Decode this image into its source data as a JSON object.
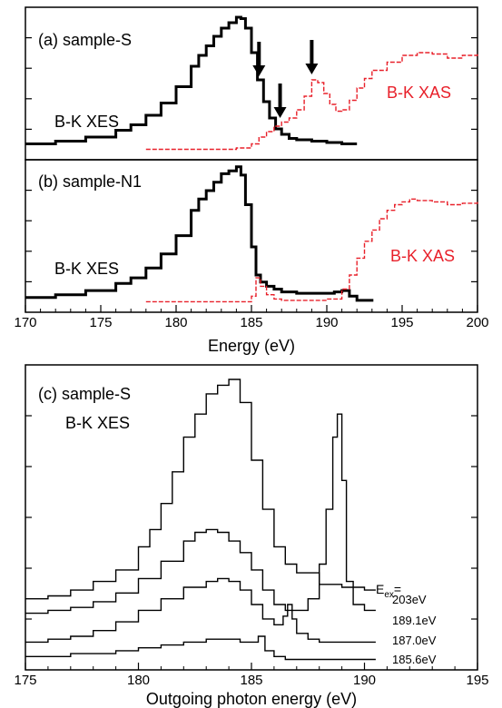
{
  "colors": {
    "xes": "#000000",
    "xas": "#e8202a",
    "axis": "#000000"
  },
  "chart_data": [
    {
      "type": "line",
      "panel_label": "(a) sample-S",
      "xlim": [
        170,
        200
      ],
      "series": [
        {
          "name": "B-K XES",
          "color": "#000000",
          "x": [
            170,
            172,
            174,
            176,
            177,
            178,
            179,
            180,
            181,
            181.5,
            182,
            182.5,
            183,
            183.5,
            184,
            184.3,
            184.6,
            185,
            185.4,
            185.8,
            186.2,
            186.6,
            187,
            187.5,
            188,
            189,
            190,
            191,
            192
          ],
          "y": [
            0.05,
            0.07,
            0.1,
            0.15,
            0.19,
            0.26,
            0.35,
            0.47,
            0.62,
            0.7,
            0.77,
            0.84,
            0.9,
            0.94,
            0.98,
            0.97,
            0.9,
            0.72,
            0.52,
            0.36,
            0.24,
            0.16,
            0.12,
            0.09,
            0.08,
            0.07,
            0.06,
            0.05,
            0.05
          ]
        },
        {
          "name": "B-K XAS",
          "color": "#e8202a",
          "x": [
            178,
            180,
            182,
            184,
            185,
            185.5,
            186,
            186.5,
            187,
            187.5,
            188,
            188.5,
            189,
            189.4,
            189.8,
            190.2,
            190.6,
            191,
            191.5,
            192,
            192.5,
            193,
            194,
            195,
            196,
            197,
            198,
            199,
            200
          ],
          "y": [
            0.01,
            0.01,
            0.01,
            0.02,
            0.05,
            0.1,
            0.14,
            0.18,
            0.21,
            0.24,
            0.3,
            0.4,
            0.52,
            0.5,
            0.42,
            0.34,
            0.29,
            0.3,
            0.37,
            0.46,
            0.53,
            0.59,
            0.65,
            0.7,
            0.72,
            0.71,
            0.68,
            0.7,
            0.71
          ]
        }
      ],
      "labels": {
        "xes": "B-K XES",
        "xas": "B-K XAS"
      },
      "arrows_at_energy": [
        185.5,
        186.9,
        189.0
      ]
    },
    {
      "type": "line",
      "panel_label": "(b) sample-N1",
      "xlabel": "Energy (eV)",
      "xlim": [
        170,
        200
      ],
      "xticks": [
        "170",
        "175",
        "180",
        "185",
        "190",
        "195",
        "200"
      ],
      "series": [
        {
          "name": "B-K XES",
          "color": "#000000",
          "x": [
            170,
            172,
            174,
            176,
            177,
            178,
            179,
            180,
            181,
            181.5,
            182,
            182.5,
            183,
            183.5,
            184,
            184.3,
            184.6,
            185,
            185.3,
            185.6,
            186,
            186.5,
            187,
            188,
            189,
            190,
            190.5,
            191,
            191.5,
            192,
            193
          ],
          "y": [
            0.04,
            0.06,
            0.09,
            0.14,
            0.18,
            0.25,
            0.35,
            0.48,
            0.66,
            0.74,
            0.8,
            0.86,
            0.92,
            0.94,
            0.97,
            0.91,
            0.7,
            0.4,
            0.2,
            0.15,
            0.12,
            0.1,
            0.08,
            0.07,
            0.07,
            0.07,
            0.08,
            0.09,
            0.05,
            0.02,
            0.01
          ]
        },
        {
          "name": "B-K XAS",
          "color": "#e8202a",
          "x": [
            178,
            180,
            182,
            184,
            185,
            185.3,
            185.6,
            186,
            186.5,
            187,
            188,
            189,
            190,
            191,
            191.5,
            192,
            192.5,
            193,
            193.5,
            194,
            194.5,
            195,
            195.5,
            196,
            197,
            198,
            199,
            200
          ],
          "y": [
            0.01,
            0.01,
            0.01,
            0.01,
            0.05,
            0.18,
            0.12,
            0.06,
            0.03,
            0.02,
            0.02,
            0.02,
            0.03,
            0.1,
            0.2,
            0.32,
            0.44,
            0.52,
            0.6,
            0.66,
            0.7,
            0.72,
            0.74,
            0.73,
            0.72,
            0.7,
            0.71,
            0.73
          ]
        }
      ],
      "labels": {
        "xes": "B-K XES",
        "xas": "B-K XAS"
      }
    },
    {
      "type": "line",
      "panel_label": "(c) sample-S",
      "subtitle": "B-K XES",
      "xlabel": "Outgoing photon energy (eV)",
      "xlim": [
        175,
        195
      ],
      "xticks": [
        "175",
        "180",
        "185",
        "190",
        "195"
      ],
      "legend_title": "E",
      "legend_title_sub": "ex",
      "legend_title_suffix": "=",
      "series": [
        {
          "name": "203eV",
          "color": "#000000",
          "x": [
            175,
            176,
            177,
            178,
            179,
            180,
            180.5,
            181,
            181.5,
            182,
            182.5,
            183,
            183.5,
            184,
            184.5,
            185,
            185.5,
            186,
            186.5,
            187,
            188,
            189,
            190,
            190.5
          ],
          "y": [
            0.24,
            0.25,
            0.27,
            0.3,
            0.34,
            0.42,
            0.48,
            0.57,
            0.68,
            0.8,
            0.88,
            0.95,
            0.98,
            1.0,
            0.92,
            0.72,
            0.55,
            0.42,
            0.36,
            0.33,
            0.29,
            0.28,
            0.27,
            0.27
          ]
        },
        {
          "name": "189.1eV",
          "color": "#000000",
          "x": [
            175,
            176,
            177,
            178,
            179,
            180,
            181,
            182,
            182.5,
            183,
            183.5,
            184,
            184.5,
            185,
            185.5,
            186,
            186.5,
            187,
            187.5,
            188,
            188.3,
            188.6,
            188.8,
            189,
            189.2,
            189.5,
            190,
            190.5
          ],
          "y": [
            0.19,
            0.2,
            0.21,
            0.23,
            0.26,
            0.31,
            0.37,
            0.44,
            0.47,
            0.48,
            0.47,
            0.44,
            0.4,
            0.34,
            0.27,
            0.22,
            0.2,
            0.2,
            0.24,
            0.36,
            0.55,
            0.8,
            0.88,
            0.65,
            0.3,
            0.22,
            0.2,
            0.2
          ]
        },
        {
          "name": "187.0eV",
          "color": "#000000",
          "x": [
            175,
            176,
            177,
            178,
            179,
            180,
            181,
            182,
            183,
            183.5,
            184,
            184.5,
            185,
            185.5,
            186,
            186.4,
            186.6,
            186.8,
            187,
            187.5,
            188,
            189,
            190,
            190.5
          ],
          "y": [
            0.09,
            0.1,
            0.11,
            0.13,
            0.16,
            0.2,
            0.24,
            0.28,
            0.3,
            0.31,
            0.3,
            0.27,
            0.22,
            0.17,
            0.15,
            0.18,
            0.22,
            0.17,
            0.12,
            0.1,
            0.09,
            0.09,
            0.09,
            0.09
          ]
        },
        {
          "name": "185.6eV",
          "color": "#000000",
          "x": [
            175,
            176,
            177,
            178,
            179,
            180,
            181,
            182,
            183,
            184,
            184.5,
            185,
            185.3,
            185.6,
            186,
            186.5,
            187,
            188,
            189,
            190,
            190.5
          ],
          "y": [
            0.04,
            0.04,
            0.05,
            0.05,
            0.06,
            0.07,
            0.08,
            0.09,
            0.1,
            0.1,
            0.09,
            0.09,
            0.11,
            0.06,
            0.04,
            0.03,
            0.03,
            0.03,
            0.03,
            0.03,
            0.03
          ]
        }
      ]
    }
  ]
}
